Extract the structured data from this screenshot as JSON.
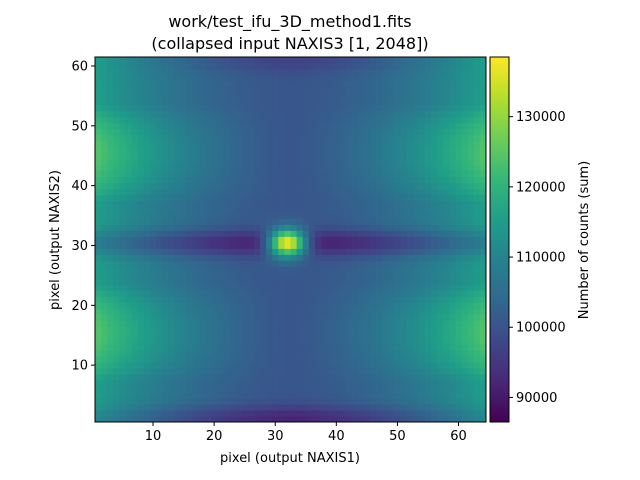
{
  "chart_data": {
    "type": "heatmap",
    "title_lines": [
      "work/test_ifu_3D_method1.fits",
      "(collapsed input NAXIS3 [1, 2048])"
    ],
    "xlabel": "pixel (output NAXIS1)",
    "ylabel": "pixel (output NAXIS2)",
    "xlim": [
      0.5,
      64.5
    ],
    "ylim": [
      0.5,
      61.5
    ],
    "x_ticks": [
      10,
      20,
      30,
      40,
      50,
      60
    ],
    "y_ticks": [
      10,
      20,
      30,
      40,
      50,
      60
    ],
    "grid": false,
    "shape": {
      "nx": 64,
      "ny": 61
    },
    "colormap": "viridis",
    "colormap_stops": [
      "#440154",
      "#482878",
      "#3e4989",
      "#31688e",
      "#26828e",
      "#1f9e89",
      "#35b779",
      "#6ece58",
      "#b5de2b",
      "#fde725"
    ],
    "value_range": [
      86500,
      138500
    ],
    "colorbar": {
      "label": "Number of counts (sum)",
      "ticks": [
        90000,
        100000,
        110000,
        120000,
        130000
      ]
    },
    "field_model": {
      "base": 100500,
      "x_center": 32.5,
      "y_center": 30.5,
      "edge_brightening_x_amp": 15000,
      "vertical_band_amp": 9000,
      "horizontal_dark_band_amp": 11000,
      "horizontal_dark_band_width": 2.2,
      "bottom_dark_amp": 9000,
      "source_peak": 138000,
      "source_center": [
        32,
        30.5
      ],
      "source_sigma_x": 2.2,
      "source_sigma_y": 1.7
    }
  }
}
